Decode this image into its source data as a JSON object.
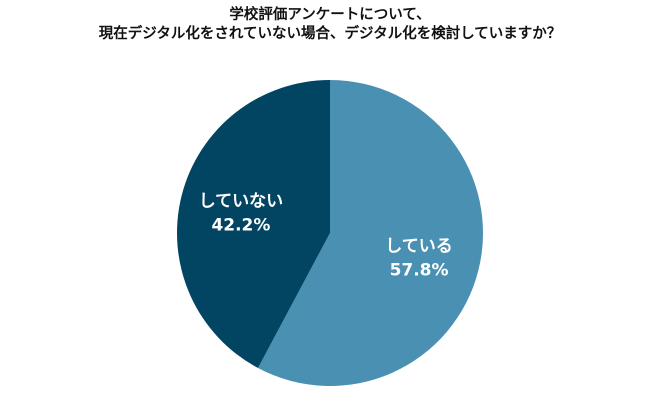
{
  "chart_data": {
    "type": "pie",
    "title_lines": [
      "学校評価アンケートについて、",
      "現在デジタル化をされていない場合、デジタル化を検討していますか？"
    ],
    "slices": [
      {
        "label": "している",
        "value": 57.8,
        "value_label": "57.8%",
        "color": "#4a90b2"
      },
      {
        "label": "していない",
        "value": 42.2,
        "value_label": "42.2%",
        "color": "#024563"
      }
    ],
    "start": "12 o'clock",
    "direction": "clockwise"
  }
}
